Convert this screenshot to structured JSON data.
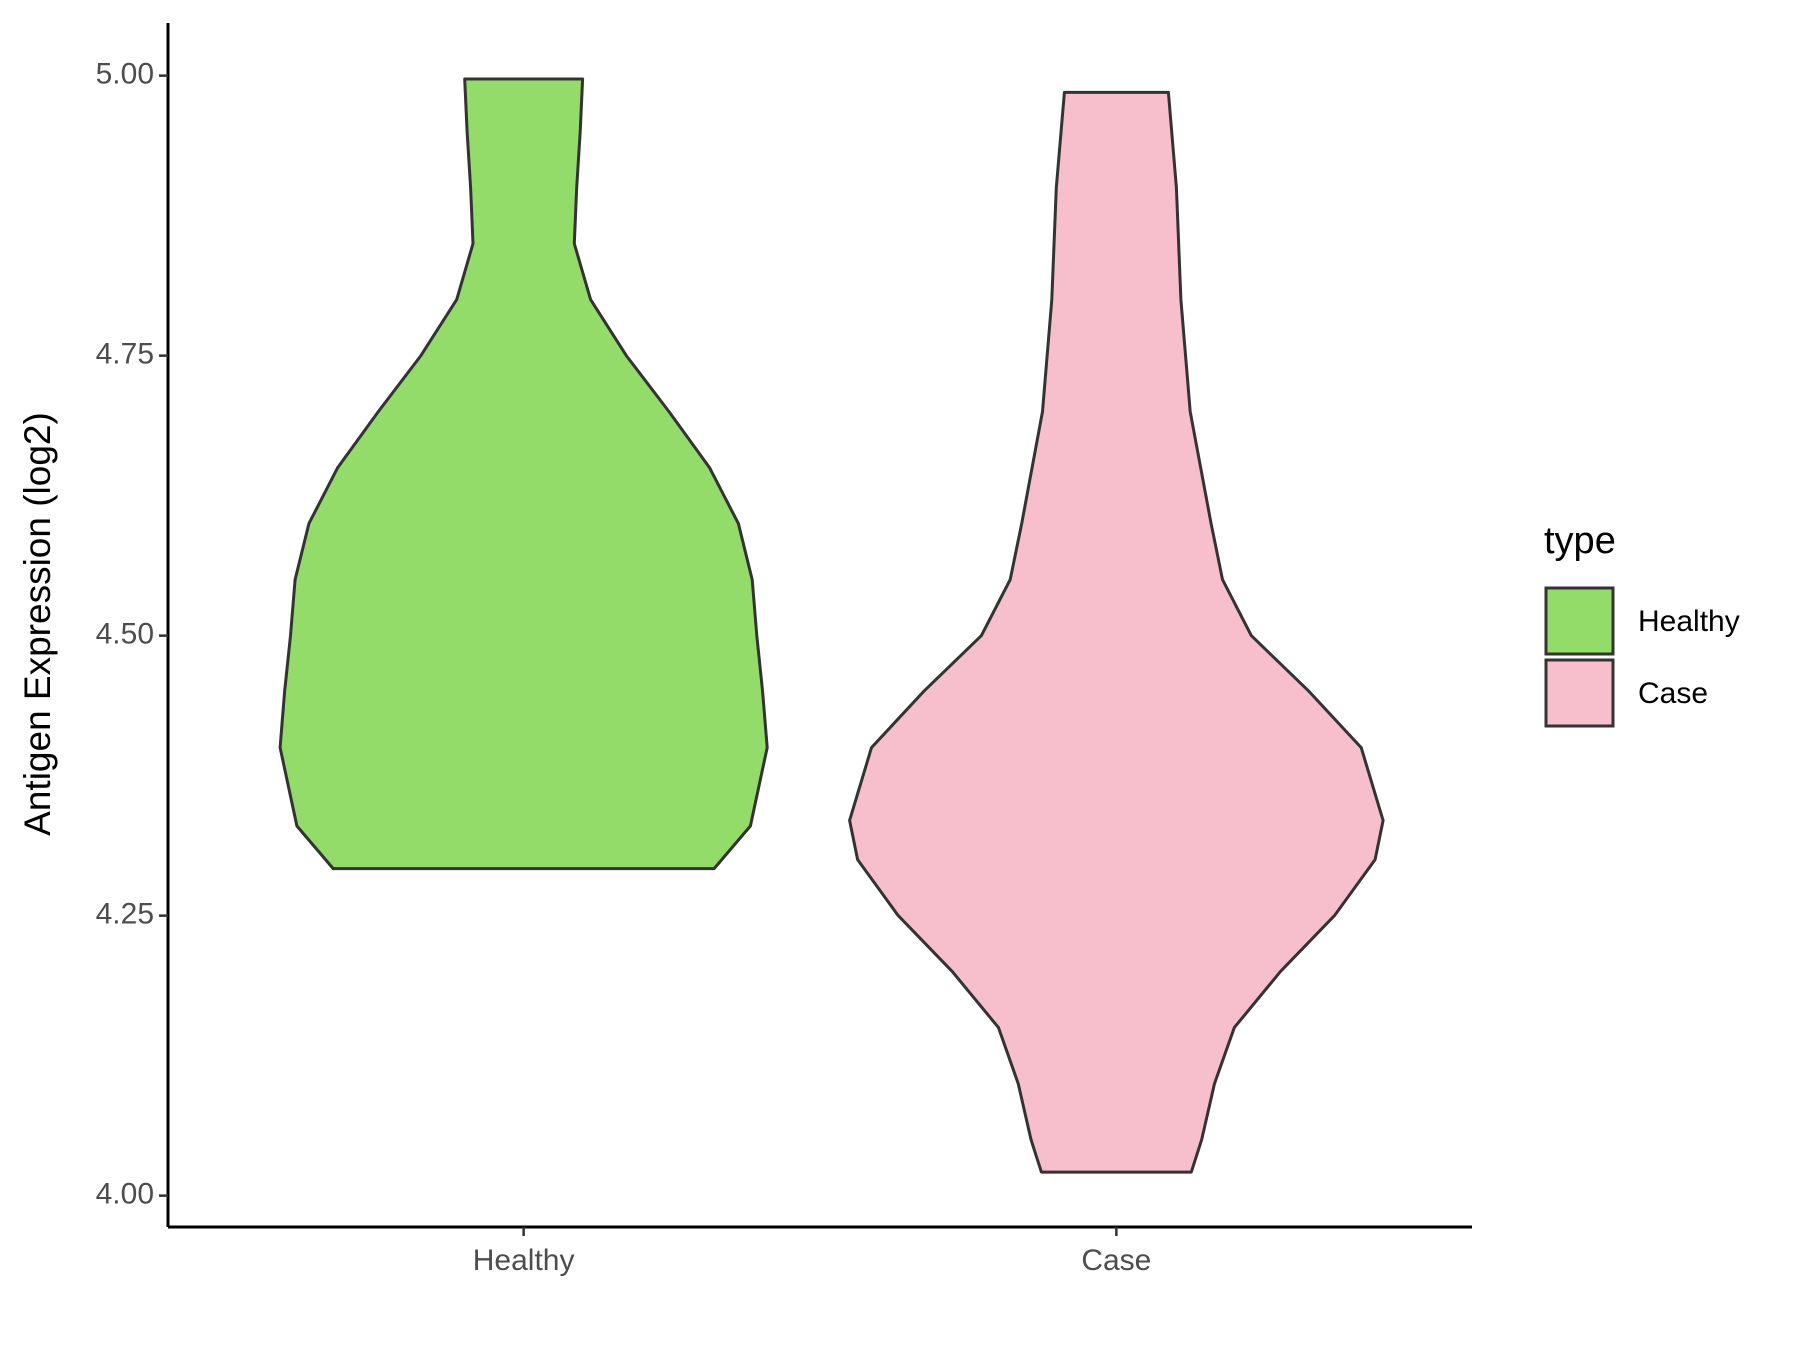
{
  "chart_data": {
    "type": "violin",
    "y_label": "Antigen Expression (log2)",
    "legend_title": "type",
    "categories": [
      "Healthy",
      "Case"
    ],
    "series": [
      {
        "name": "Healthy",
        "color": "#94dc6a",
        "y": [
          4.292,
          4.33,
          4.4,
          4.45,
          4.5,
          4.55,
          4.6,
          4.65,
          4.7,
          4.75,
          4.8,
          4.85,
          4.9,
          4.95,
          4.997
        ],
        "width": [
          0.714,
          0.85,
          0.913,
          0.896,
          0.874,
          0.857,
          0.805,
          0.697,
          0.545,
          0.385,
          0.251,
          0.19,
          0.199,
          0.212,
          0.221
        ]
      },
      {
        "name": "Case",
        "color": "#f7bfcb",
        "y": [
          4.021,
          4.05,
          4.1,
          4.15,
          4.2,
          4.25,
          4.3,
          4.335,
          4.4,
          4.45,
          4.5,
          4.55,
          4.6,
          4.7,
          4.8,
          4.9,
          4.985
        ],
        "width": [
          0.281,
          0.32,
          0.368,
          0.442,
          0.615,
          0.818,
          0.97,
          1,
          0.918,
          0.723,
          0.506,
          0.398,
          0.355,
          0.277,
          0.242,
          0.225,
          0.195
        ]
      }
    ],
    "ylim": [
      3.972,
      5.047
    ],
    "yticks": [
      {
        "value": 4,
        "label": "4.00"
      },
      4.25,
      {
        "value": 4.5,
        "label": "4.50"
      },
      4.75,
      {
        "value": 5,
        "label": "5.00"
      }
    ]
  }
}
